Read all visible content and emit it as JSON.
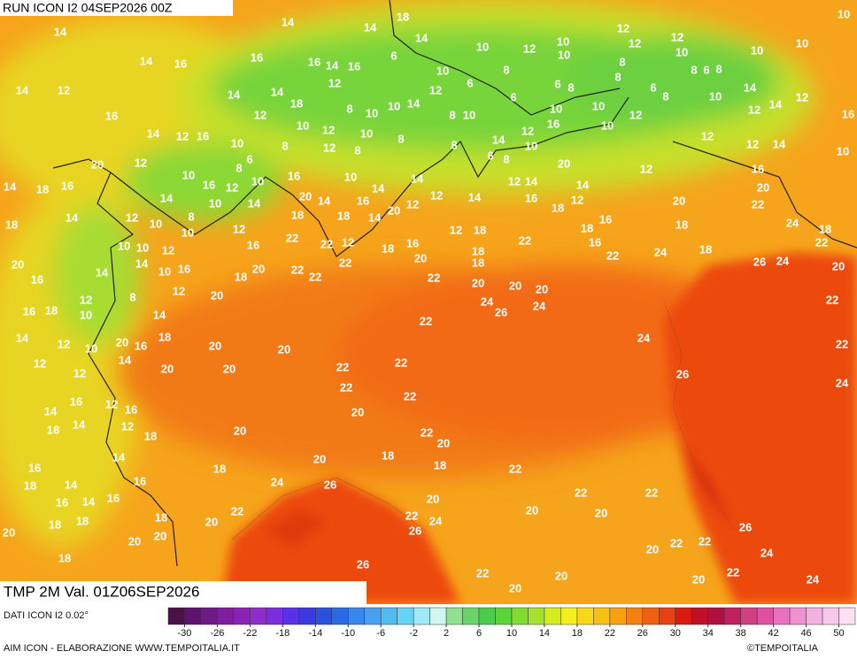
{
  "header": {
    "run": "RUN ICON I2 04SEP2026 00Z"
  },
  "map": {
    "labels": [
      14,
      14,
      14,
      18,
      14,
      10,
      12,
      10,
      10,
      12,
      12,
      12,
      10,
      10,
      10,
      10,
      14,
      16,
      16,
      16,
      14,
      16,
      6,
      10,
      8,
      6,
      6,
      6,
      8,
      8,
      8,
      6,
      8,
      8,
      6,
      8,
      14,
      14,
      12,
      14,
      14,
      12,
      12,
      10,
      10,
      12,
      10,
      12,
      14,
      12,
      16,
      16,
      12,
      18,
      8,
      10,
      10,
      14,
      8,
      10,
      12,
      16,
      10,
      14,
      12,
      16,
      10,
      8,
      10,
      12,
      12,
      10,
      8,
      8,
      14,
      12,
      12,
      14,
      12,
      20,
      6,
      8,
      8,
      6,
      8,
      10,
      20,
      12,
      16,
      10,
      14,
      18,
      16,
      10,
      16,
      12,
      10,
      16,
      10,
      14,
      14,
      20,
      14,
      16,
      20,
      12,
      12,
      14,
      12,
      14,
      14,
      20,
      14,
      10,
      14,
      8,
      12,
      10,
      14,
      18,
      20,
      22,
      18,
      18,
      14,
      16,
      18,
      12,
      16,
      18,
      24,
      18,
      10,
      12,
      22,
      22,
      12,
      18,
      16,
      12,
      18,
      22,
      18,
      16,
      18,
      22,
      20,
      10,
      10,
      12,
      16,
      18,
      22,
      24,
      26,
      24,
      20,
      16,
      14,
      14,
      10,
      16,
      18,
      20,
      22,
      22,
      22,
      20,
      22,
      18,
      20,
      20,
      20,
      12,
      12,
      20,
      8,
      24,
      26,
      24,
      22,
      16,
      18,
      10,
      14,
      22,
      18,
      14,
      12,
      10,
      20,
      16,
      20,
      20,
      24,
      22,
      12,
      14,
      20,
      20,
      22,
      22,
      12,
      22,
      22,
      26,
      24,
      14,
      16,
      12,
      16,
      20,
      18,
      14,
      12,
      18,
      20,
      22,
      20,
      14,
      18,
      20,
      18,
      18,
      22,
      16,
      18,
      14,
      16,
      24,
      26,
      16,
      14,
      16,
      20,
      22,
      22,
      20,
      18,
      18,
      18,
      22,
      20,
      22,
      24,
      26,
      20,
      20,
      26,
      20,
      20,
      20,
      22,
      22,
      24,
      18,
      26,
      22,
      20,
      22,
      20,
      20,
      24
    ],
    "legend_title": "TMP 2M Val. 01Z06SEP2026"
  },
  "legend": {
    "source": "DATI ICON I2 0.02°",
    "lim": [
      -32,
      52
    ],
    "ticks": [
      -30,
      -26,
      -22,
      -18,
      -14,
      -10,
      -6,
      -2,
      2,
      6,
      10,
      14,
      18,
      22,
      26,
      30,
      34,
      38,
      42,
      46,
      50
    ],
    "colors": [
      "#4a1048",
      "#5e1370",
      "#6e1a86",
      "#7d1e9e",
      "#8a22b5",
      "#8e2ccc",
      "#7a2ee0",
      "#5a30e6",
      "#3a38e0",
      "#2a50e0",
      "#2a6ae6",
      "#3a86ec",
      "#4aa0f0",
      "#50bcf0",
      "#66d4f4",
      "#a0eaf6",
      "#d0f6f0",
      "#90e090",
      "#6ad46a",
      "#4ccc4c",
      "#5ad43a",
      "#80dc30",
      "#a8e030",
      "#d4ec20",
      "#f4f020",
      "#f8d818",
      "#f8c010",
      "#f8a010",
      "#f48010",
      "#f06010",
      "#e84010",
      "#d81a10",
      "#c01028",
      "#b01040",
      "#c02060",
      "#d04080",
      "#e050a0",
      "#ea70c0",
      "#f090d0",
      "#f4b0e0",
      "#f8c8ec",
      "#fce0f4"
    ]
  },
  "footer": {
    "left": "AIM ICON - ELABORAZIONE WWW.TEMPOITALIA.IT",
    "right": "©TEMPOITALIA"
  }
}
